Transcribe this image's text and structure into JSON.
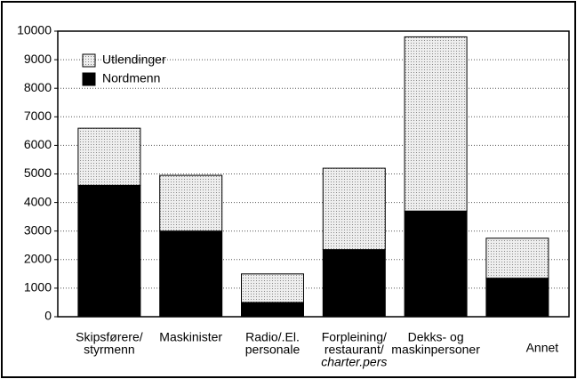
{
  "chart_data": {
    "type": "bar",
    "stacked": true,
    "categories": [
      [
        "Skipsførere/",
        "styrmenn"
      ],
      [
        "Maskinister"
      ],
      [
        "Radio/.El.",
        "personale"
      ],
      [
        "Forpleining/",
        "restaurant/",
        "charter.pers"
      ],
      [
        "Dekks- og",
        "maskinpersoner"
      ],
      [
        "Annet"
      ]
    ],
    "series": [
      {
        "name": "Nordmenn",
        "color": "#000000",
        "values": [
          4600,
          3000,
          500,
          2350,
          3700,
          1350
        ]
      },
      {
        "name": "Utlendinger",
        "color": "#dadada",
        "values": [
          2000,
          1950,
          1000,
          2850,
          6100,
          1400
        ]
      }
    ],
    "ylim": [
      0,
      10000
    ],
    "yticks": [
      0,
      1000,
      2000,
      3000,
      4000,
      5000,
      6000,
      7000,
      8000,
      9000,
      10000
    ],
    "grid": true,
    "legend": "top-left"
  }
}
